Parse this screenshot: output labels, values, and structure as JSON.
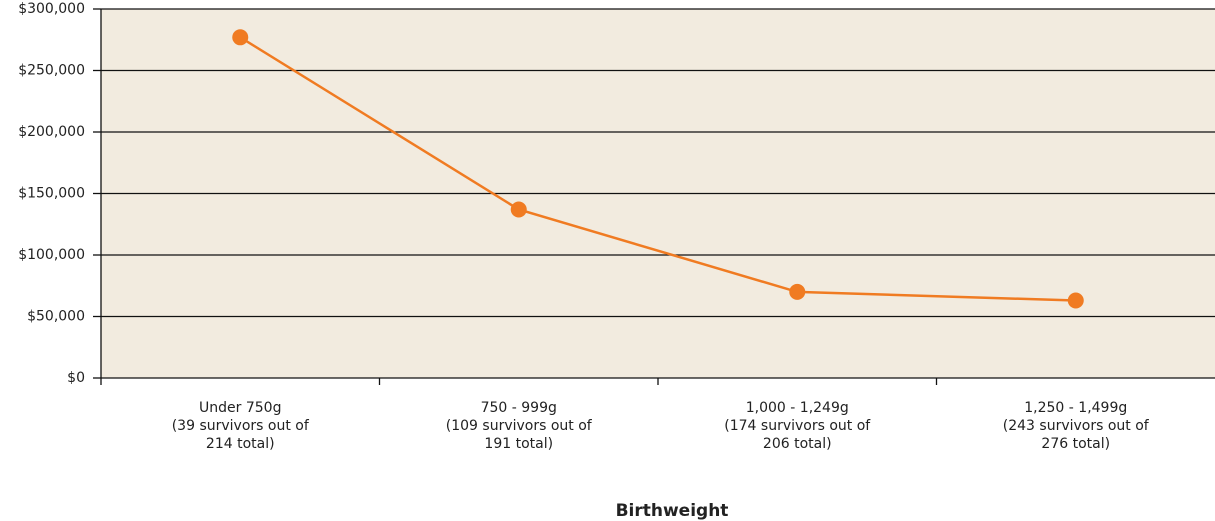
{
  "chart_data": {
    "type": "line",
    "x_label": "Birthweight",
    "categories": [
      [
        "Under 750g",
        "(39 survivors out of",
        "214 total)"
      ],
      [
        "750 - 999g",
        "(109 survivors out of",
        "191 total)"
      ],
      [
        "1,000 - 1,249g",
        "(174 survivors out of",
        "206 total)"
      ],
      [
        "1,250 - 1,499g",
        "(243 survivors out of",
        "276 total)"
      ]
    ],
    "values": [
      277000,
      137000,
      70000,
      63000
    ],
    "color": "#f07b22",
    "ylim": [
      0,
      300000
    ],
    "yticks": [
      {
        "value": 0,
        "label": "$0"
      },
      {
        "value": 50000,
        "label": "$50,000"
      },
      {
        "value": 100000,
        "label": "$100,000"
      },
      {
        "value": 150000,
        "label": "$150,000"
      },
      {
        "value": 200000,
        "label": "$200,000"
      },
      {
        "value": 250000,
        "label": "$250,000"
      },
      {
        "value": 300000,
        "label": "$300,000"
      }
    ],
    "grid": true
  }
}
